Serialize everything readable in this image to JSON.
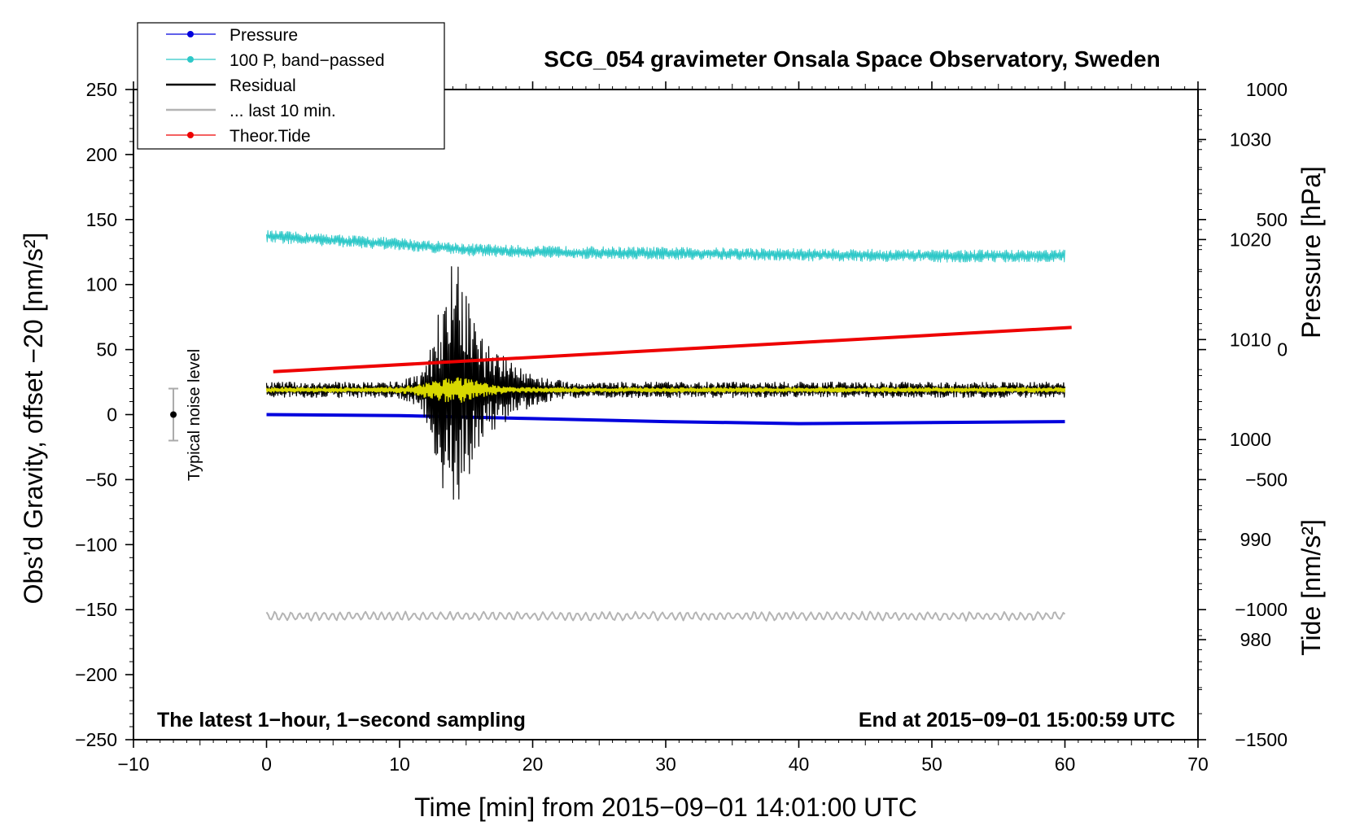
{
  "chart_data": {
    "type": "line",
    "title": "SCG_054 gravimeter Onsala Space Observatory, Sweden",
    "xlabel": "Time [min] from 2015−09−01 14:01:00 UTC",
    "ylabel_left": "Obs’d Gravity, offset −20 [nm/s²]",
    "ylabel_right_top": "Pressure [hPa]",
    "ylabel_right_bottom": "Tide [nm/s²]",
    "xlim": [
      -10,
      70
    ],
    "ylim_left": [
      -250,
      250
    ],
    "ylim_pressure": [
      970,
      1035
    ],
    "ylim_tide": [
      -1500,
      1000
    ],
    "x_ticks": [
      {
        "value": -10,
        "label": "−10"
      },
      {
        "value": 0,
        "label": "0"
      },
      {
        "value": 10,
        "label": "10"
      },
      {
        "value": 20,
        "label": "20"
      },
      {
        "value": 30,
        "label": "30"
      },
      {
        "value": 40,
        "label": "40"
      },
      {
        "value": 50,
        "label": "50"
      },
      {
        "value": 60,
        "label": "60"
      },
      {
        "value": 70,
        "label": "70"
      }
    ],
    "y_ticks_left": [
      {
        "value": 250,
        "label": "250"
      },
      {
        "value": 200,
        "label": "200"
      },
      {
        "value": 150,
        "label": "150"
      },
      {
        "value": 100,
        "label": "100"
      },
      {
        "value": 50,
        "label": "50"
      },
      {
        "value": 0,
        "label": "0"
      },
      {
        "value": -50,
        "label": "−50"
      },
      {
        "value": -100,
        "label": "−100"
      },
      {
        "value": -150,
        "label": "−150"
      },
      {
        "value": -200,
        "label": "−200"
      },
      {
        "value": -250,
        "label": "−250"
      }
    ],
    "y_ticks_pressure": [
      {
        "value": 1030,
        "label": "1030"
      },
      {
        "value": 1020,
        "label": "1020"
      },
      {
        "value": 1010,
        "label": "1010"
      },
      {
        "value": 1000,
        "label": "1000"
      },
      {
        "value": 990,
        "label": "990"
      },
      {
        "value": 980,
        "label": "980"
      }
    ],
    "y_ticks_tide": [
      {
        "value": 1000,
        "label": "1000"
      },
      {
        "value": 500,
        "label": "500"
      },
      {
        "value": 0,
        "label": "0"
      },
      {
        "value": -500,
        "label": "−500"
      },
      {
        "value": -1000,
        "label": "−1000"
      },
      {
        "value": -1500,
        "label": "−1500"
      }
    ],
    "legend": {
      "placement": "top-left",
      "entries": [
        {
          "label": "Pressure",
          "color": "#0000dd",
          "marker": true
        },
        {
          "label": "100 P, band−passed",
          "color": "#2ec8c8",
          "marker": true
        },
        {
          "label": "Residual",
          "color": "#000000",
          "marker": false
        },
        {
          "label": "... last 10 min.",
          "color": "#b4b4b4",
          "marker": false
        },
        {
          "label": "Theor.Tide",
          "color": "#ee0000",
          "marker": true
        }
      ]
    },
    "annotations": {
      "bottom_left": "The latest 1−hour, 1−second sampling",
      "bottom_right": "End at 2015−09−01 15:00:59 UTC",
      "noise_label": "Typical noise level"
    },
    "noise_bar": {
      "x": -7,
      "center": 0,
      "half_range": 20
    },
    "series": [
      {
        "name": "Pressure",
        "axis": "pressure",
        "color": "#0000dd",
        "width": 4,
        "x": [
          0,
          10,
          20,
          30,
          40,
          50,
          60
        ],
        "y": [
          1002.5,
          1002.4,
          1002.1,
          1001.8,
          1001.6,
          1001.7,
          1001.8
        ]
      },
      {
        "name": "100 P, band−passed",
        "axis": "left",
        "color": "#2ec8c8",
        "width": 1,
        "x": [
          0,
          5,
          10,
          15,
          20,
          30,
          40,
          50,
          60
        ],
        "y": [
          137,
          134,
          131,
          127,
          125,
          124,
          123,
          122,
          122
        ],
        "noise": 4
      },
      {
        "name": "Residual",
        "axis": "left",
        "color": "#000000",
        "width": 1.2,
        "x": [
          0,
          60
        ],
        "y": [
          19,
          19
        ],
        "noise": 5,
        "bursts": [
          {
            "x": 14,
            "amp": 60,
            "width": 1.5
          },
          {
            "x": 16,
            "amp": 22,
            "width": 3.5
          }
        ]
      },
      {
        "name": "band−passed residual",
        "axis": "left",
        "color": "#d8d800",
        "width": 1.5,
        "x": [
          0,
          60
        ],
        "y": [
          19,
          19
        ],
        "noise": 1.5,
        "bursts": [
          {
            "x": 14,
            "amp": 7,
            "width": 2.5
          }
        ]
      },
      {
        "name": "... last 10 min.",
        "axis": "left",
        "color": "#b4b4b4",
        "width": 2,
        "x": [
          0,
          60
        ],
        "y": [
          -155,
          -155
        ],
        "noise": 3,
        "smooth": true
      },
      {
        "name": "Theor.Tide",
        "axis": "tide",
        "color": "#ee0000",
        "width": 4,
        "x": [
          0.5,
          60.5
        ],
        "y": [
          -85,
          85
        ]
      }
    ]
  }
}
